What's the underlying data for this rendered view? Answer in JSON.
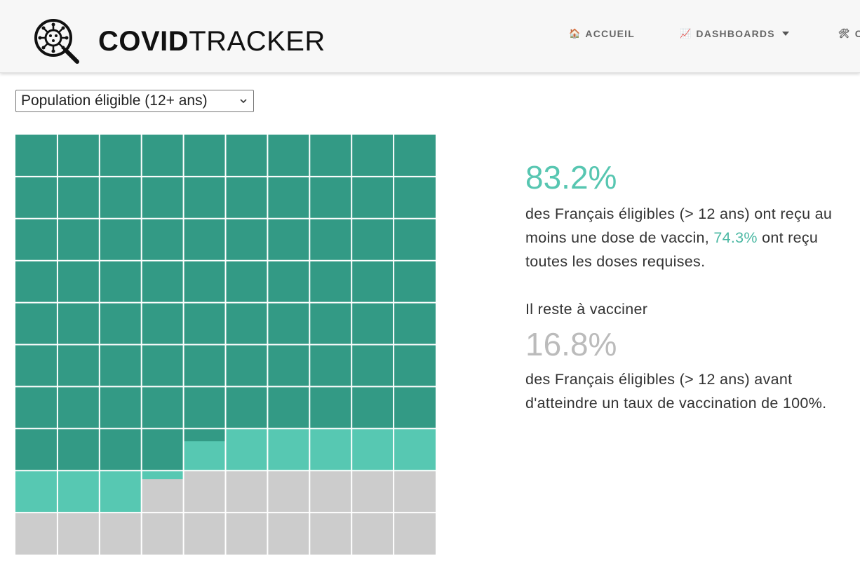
{
  "header": {
    "brand_bold": "COVID",
    "brand_light": "TRACKER",
    "nav": [
      {
        "icon": "🏠",
        "label": "ACCUEIL"
      },
      {
        "icon": "📈",
        "label": "DASHBOARDS"
      },
      {
        "icon": "🛠",
        "label": "C"
      }
    ]
  },
  "selector": {
    "value": "Population éligible (12+ ans)"
  },
  "colors": {
    "full_dose": "#339a85",
    "one_dose": "#57c8b2",
    "not_vaccinated": "#cccccc"
  },
  "waffle": {
    "first_dose_pct": 83.2,
    "full_vaccination_pct": 74.3,
    "remaining_pct": 16.8
  },
  "stats": {
    "first_dose_pct": "83.2%",
    "first_dose_text": "des Français éligibles (> 12 ans) ont reçu au moins une dose de vaccin,",
    "full_pct": "74.3%",
    "full_text": " ont reçu toutes les doses requises.",
    "remaining_intro": "Il reste à vacciner",
    "remaining_pct": "16.8%",
    "remaining_text": "des Français éligibles (> 12 ans) avant d'atteindre un taux de vaccination de 100%."
  }
}
